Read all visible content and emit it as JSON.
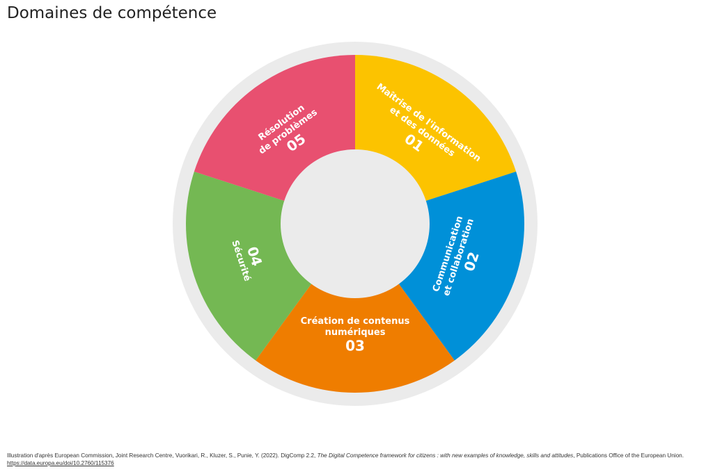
{
  "title": "Domaines de compétence",
  "colors": {
    "outer_ring": "#ebebeb",
    "center": "#ebebeb",
    "label_text": "#ffffff"
  },
  "segments": [
    {
      "number": "01",
      "lines": [
        "Maîtrise de l'information",
        "et des données"
      ],
      "color": "#fcc300"
    },
    {
      "number": "02",
      "lines": [
        "Communication",
        "et collaboration"
      ],
      "color": "#0090d8"
    },
    {
      "number": "03",
      "lines": [
        "Création de contenus",
        "numériques"
      ],
      "color": "#ef7d00"
    },
    {
      "number": "04",
      "lines": [
        "Sécurité"
      ],
      "color": "#74b853"
    },
    {
      "number": "05",
      "lines": [
        "Résolution",
        "de problèmes"
      ],
      "color": "#e85070"
    }
  ],
  "source": {
    "prefix": "Illustration d'après European Commission, Joint Research Centre, Vuorikari, R., Kluzer, S., Punie, Y. (2022). DigComp 2.2, ",
    "italic": "The Digital Competence framework for citizens : with new examples of knowledge, skills and attitudes",
    "suffix": ", Publications Office of the European Union. ",
    "link": "https://data.europa.eu/doi/10.2760/115376"
  }
}
